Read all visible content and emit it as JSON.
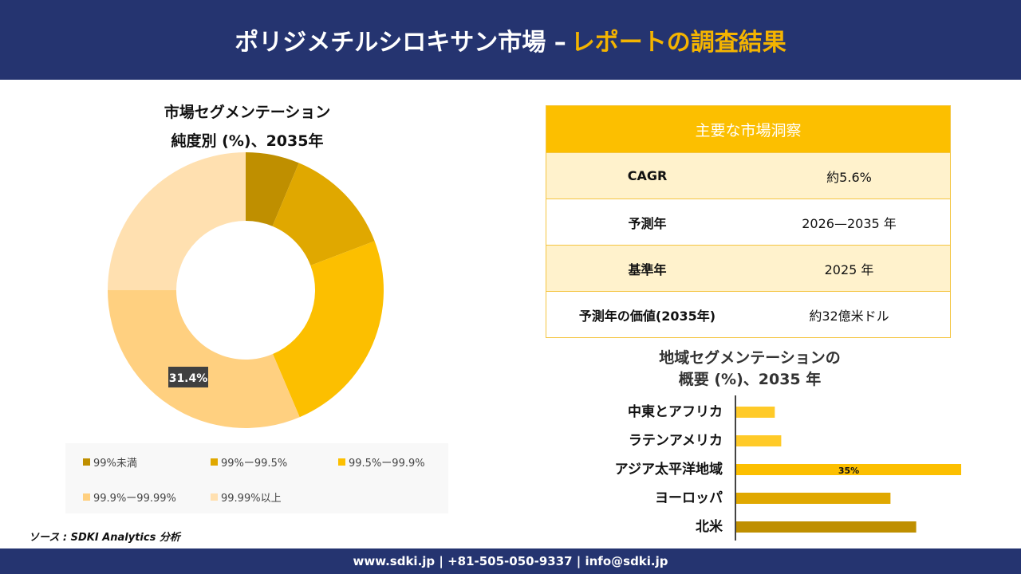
{
  "header": {
    "title": "ポリジメチルシロキサン市場 –",
    "title_highlight": "レポートの調査結果"
  },
  "insights": {
    "title": "主要な市場洞察",
    "rows": [
      {
        "label": "CAGR",
        "value": "約5.6%"
      },
      {
        "label": "予測年",
        "value": "2026—2035 年"
      },
      {
        "label": "基準年",
        "value": "2025 年"
      },
      {
        "label": "予測年の価値(2035年)",
        "value": "約32億米ドル"
      }
    ]
  },
  "source": "ソース : SDKI Analytics 分析",
  "footer": "www.sdki.jp | +81-505-050-9337 | info@sdki.jp",
  "chart_data": [
    {
      "type": "pie",
      "title": "市場セグメンテーション",
      "subtitle": "純度別 (%)、2035年",
      "categories": [
        "99%未満",
        "99%ー99.5%",
        "99.5%ー99.9%",
        "99.9%ー99.99%",
        "99.99%以上"
      ],
      "values": [
        6.3,
        12.9,
        24.4,
        31.4,
        25.0
      ],
      "colors": [
        "#bf8f00",
        "#e0a800",
        "#fcbf00",
        "#ffd080",
        "#ffe0b0"
      ],
      "data_labels": [
        {
          "index": 3,
          "text": "31.4%"
        }
      ],
      "legend": "bottom"
    },
    {
      "type": "bar",
      "orientation": "horizontal",
      "title": "地域セグメンテーションの",
      "subtitle": "概要 (%)、2035 年",
      "categories": [
        "中東とアフリカ",
        "ラテンアメリカ",
        "アジア太平洋地域",
        "ヨーロッパ",
        "北米"
      ],
      "values": [
        6,
        7,
        35,
        24,
        28
      ],
      "colors": [
        "#ffca28",
        "#ffca28",
        "#fcbf00",
        "#e0a800",
        "#bf8f00"
      ],
      "data_labels": [
        {
          "index": 2,
          "text": "35%"
        }
      ]
    }
  ]
}
